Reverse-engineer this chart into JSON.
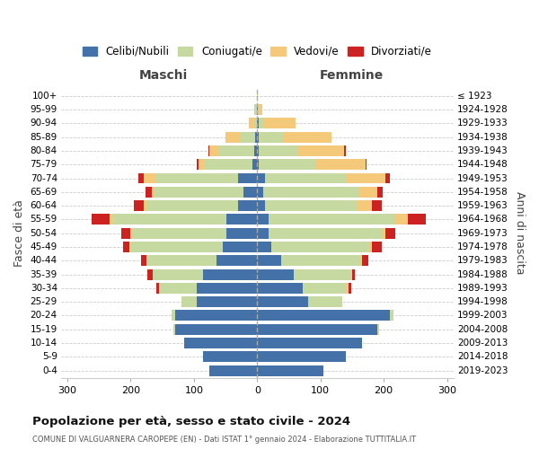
{
  "age_groups": [
    "0-4",
    "5-9",
    "10-14",
    "15-19",
    "20-24",
    "25-29",
    "30-34",
    "35-39",
    "40-44",
    "45-49",
    "50-54",
    "55-59",
    "60-64",
    "65-69",
    "70-74",
    "75-79",
    "80-84",
    "85-89",
    "90-94",
    "95-99",
    "100+"
  ],
  "birth_years": [
    "2019-2023",
    "2014-2018",
    "2009-2013",
    "2004-2008",
    "1999-2003",
    "1994-1998",
    "1989-1993",
    "1984-1988",
    "1979-1983",
    "1974-1978",
    "1969-1973",
    "1964-1968",
    "1959-1963",
    "1954-1958",
    "1949-1953",
    "1944-1948",
    "1939-1943",
    "1934-1938",
    "1929-1933",
    "1924-1928",
    "≤ 1923"
  ],
  "colors": {
    "celibi": "#4472a8",
    "coniugati": "#c5d9a0",
    "vedovi": "#f5c97a",
    "divorziati": "#cc2222"
  },
  "males": {
    "celibi": [
      75,
      85,
      115,
      130,
      130,
      95,
      95,
      85,
      65,
      55,
      48,
      48,
      30,
      22,
      30,
      8,
      5,
      3,
      1,
      1,
      0
    ],
    "coniugati": [
      0,
      0,
      0,
      2,
      5,
      25,
      60,
      80,
      110,
      145,
      150,
      180,
      145,
      140,
      130,
      75,
      55,
      25,
      4,
      2,
      0
    ],
    "vedovi": [
      0,
      0,
      0,
      0,
      0,
      0,
      0,
      0,
      0,
      2,
      2,
      5,
      5,
      5,
      20,
      10,
      15,
      22,
      8,
      2,
      0
    ],
    "divorziati": [
      0,
      0,
      0,
      0,
      0,
      0,
      5,
      8,
      8,
      10,
      15,
      28,
      15,
      10,
      8,
      3,
      2,
      0,
      0,
      0,
      0
    ]
  },
  "females": {
    "celibi": [
      105,
      140,
      165,
      190,
      210,
      80,
      72,
      58,
      38,
      22,
      18,
      18,
      12,
      10,
      12,
      3,
      3,
      2,
      2,
      1,
      0
    ],
    "coniugati": [
      0,
      0,
      0,
      2,
      5,
      55,
      70,
      90,
      125,
      155,
      180,
      200,
      145,
      150,
      130,
      90,
      60,
      40,
      8,
      2,
      0
    ],
    "vedovi": [
      0,
      0,
      0,
      0,
      0,
      0,
      2,
      2,
      2,
      5,
      5,
      20,
      25,
      30,
      60,
      78,
      75,
      75,
      50,
      5,
      1
    ],
    "divorziati": [
      0,
      0,
      0,
      0,
      0,
      0,
      5,
      5,
      10,
      15,
      15,
      28,
      15,
      8,
      8,
      2,
      2,
      0,
      0,
      0,
      0
    ]
  },
  "title": "Popolazione per età, sesso e stato civile - 2024",
  "subtitle": "COMUNE DI VALGUARNERA CAROPEPE (EN) - Dati ISTAT 1° gennaio 2024 - Elaborazione TUTTITALIA.IT",
  "xlabel_left": "Maschi",
  "xlabel_right": "Femmine",
  "ylabel_left": "Fasce di età",
  "ylabel_right": "Anni di nascita",
  "legend_labels": [
    "Celibi/Nubili",
    "Coniugati/e",
    "Vedovi/e",
    "Divorziati/e"
  ],
  "xlim": 310,
  "background_color": "#ffffff",
  "grid_color": "#cccccc"
}
